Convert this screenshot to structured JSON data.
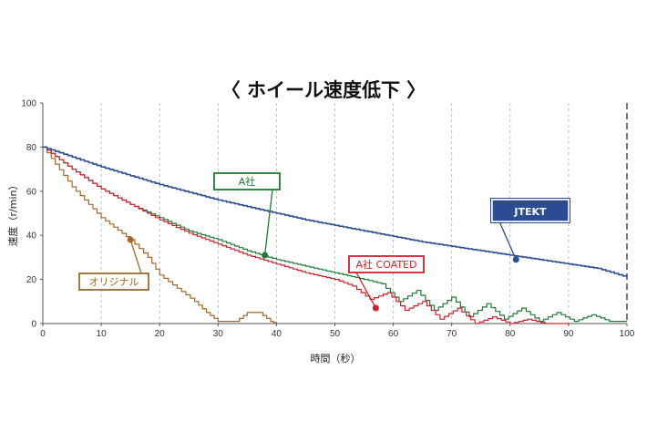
{
  "chart_data": {
    "type": "line",
    "title": "〈 ホイール速度低下 〉",
    "xlabel": "時間（秒）",
    "ylabel": "速度（r/min）",
    "xlim": [
      0,
      100
    ],
    "ylim": [
      0,
      100
    ],
    "xticks": [
      "0",
      "10",
      "20",
      "30",
      "40",
      "50",
      "60",
      "70",
      "80",
      "90",
      "100"
    ],
    "yticks": [
      "0",
      "20",
      "40",
      "60",
      "80",
      "100"
    ],
    "grid": "vertical dashed",
    "series": [
      {
        "name": "JTEKT",
        "color": "#2b4c93",
        "x": [
          0,
          5,
          10,
          15,
          20,
          25,
          30,
          35,
          40,
          45,
          50,
          55,
          60,
          65,
          70,
          75,
          80,
          85,
          90,
          95,
          100
        ],
        "y": [
          80,
          75.5,
          71,
          67,
          63,
          59.5,
          56,
          53,
          50,
          47,
          44.5,
          42,
          39.5,
          37,
          35,
          33,
          31,
          29,
          27,
          25,
          21
        ]
      },
      {
        "name": "A社",
        "color": "#1f7a35",
        "x": [
          0,
          5,
          10,
          15,
          20,
          25,
          30,
          35,
          40,
          45,
          50,
          55,
          58,
          61,
          64,
          67,
          70,
          73,
          76,
          79,
          82,
          85,
          88,
          91,
          94,
          97,
          100
        ],
        "y": [
          80,
          70,
          61,
          54,
          48,
          42,
          38,
          33,
          29,
          26,
          23,
          20,
          18,
          10,
          15,
          6,
          12,
          3,
          9,
          2,
          7,
          1,
          5,
          1,
          4,
          1,
          1
        ]
      },
      {
        "name": "A社 COATED",
        "color": "#d1202c",
        "x": [
          0,
          5,
          10,
          15,
          20,
          25,
          30,
          35,
          40,
          45,
          50,
          53,
          56,
          59,
          62,
          65,
          68,
          71,
          74,
          77,
          80,
          83,
          86,
          90
        ],
        "y": [
          80,
          70,
          61,
          54,
          47,
          41,
          36,
          31,
          27,
          23,
          20,
          17,
          11,
          14,
          6,
          10,
          2,
          7,
          0,
          3,
          0,
          2,
          0,
          0
        ]
      },
      {
        "name": "オリジナル",
        "color": "#a0692a",
        "x": [
          0,
          5,
          10,
          15,
          18,
          20,
          23,
          26,
          28,
          30,
          33,
          35,
          37,
          39,
          40
        ],
        "y": [
          80,
          62,
          48,
          38,
          30,
          22,
          16,
          10,
          5,
          1,
          1,
          5,
          5,
          1,
          0
        ]
      }
    ],
    "annotations": [
      {
        "label": "A社",
        "series": "A社",
        "x": 38,
        "y": 31
      },
      {
        "label": "JTEKT",
        "series": "JTEKT",
        "x": 81,
        "y": 29
      },
      {
        "label": "A社 COATED",
        "series": "A社 COATED",
        "x": 57,
        "y": 7
      },
      {
        "label": "オリジナル",
        "series": "オリジナル",
        "x": 15,
        "y": 38
      }
    ]
  }
}
